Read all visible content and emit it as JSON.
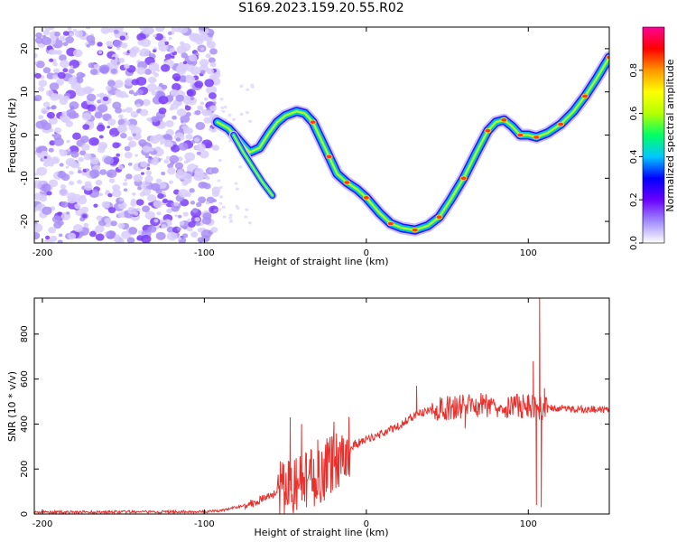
{
  "title": "S169.2023.159.20.55.R02",
  "chart_data": [
    {
      "type": "heatmap",
      "xlabel": "Height of straight line (km)",
      "ylabel": "Frequency (Hz)",
      "xlim": [
        -205,
        150
      ],
      "ylim": [
        -25,
        25
      ],
      "xticks": [
        -200,
        -100,
        0,
        100
      ],
      "yticks": [
        -20,
        -10,
        0,
        10,
        20
      ],
      "colorbar": {
        "label": "Normalized spectral amplitude",
        "range": [
          0,
          1
        ],
        "ticks": [
          "0.0",
          "0.2",
          "0.4",
          "0.6",
          "0.8"
        ],
        "tick_values": [
          0,
          0.2,
          0.4,
          0.6,
          0.8
        ],
        "colors": [
          "#ffffff",
          "#a28cff",
          "#6a00ff",
          "#0000ff",
          "#00c8ff",
          "#00ff64",
          "#b4ff00",
          "#ffff00",
          "#ff9600",
          "#ff0000",
          "#ff0096"
        ]
      },
      "noise_region": {
        "x": [
          -205,
          -92
        ],
        "y": [
          -25,
          25
        ]
      },
      "ridge": [
        {
          "x": -92,
          "y": 3
        },
        {
          "x": -85,
          "y": 1.5
        },
        {
          "x": -78,
          "y": -1.5
        },
        {
          "x": -72,
          "y": -4
        },
        {
          "x": -66,
          "y": -3
        },
        {
          "x": -60,
          "y": 0.5
        },
        {
          "x": -55,
          "y": 3
        },
        {
          "x": -50,
          "y": 4.5
        },
        {
          "x": -43,
          "y": 5.5
        },
        {
          "x": -38,
          "y": 5
        },
        {
          "x": -33,
          "y": 3
        },
        {
          "x": -28,
          "y": -1
        },
        {
          "x": -23,
          "y": -5
        },
        {
          "x": -18,
          "y": -9
        },
        {
          "x": -12,
          "y": -11
        },
        {
          "x": -6,
          "y": -12.5
        },
        {
          "x": 0,
          "y": -14.5
        },
        {
          "x": 8,
          "y": -18
        },
        {
          "x": 15,
          "y": -20.5
        },
        {
          "x": 22,
          "y": -21.5
        },
        {
          "x": 30,
          "y": -22
        },
        {
          "x": 38,
          "y": -21
        },
        {
          "x": 45,
          "y": -19
        },
        {
          "x": 52,
          "y": -15
        },
        {
          "x": 60,
          "y": -10
        },
        {
          "x": 68,
          "y": -4
        },
        {
          "x": 75,
          "y": 1
        },
        {
          "x": 80,
          "y": 3
        },
        {
          "x": 85,
          "y": 3.5
        },
        {
          "x": 90,
          "y": 2
        },
        {
          "x": 95,
          "y": 0
        },
        {
          "x": 100,
          "y": 0
        },
        {
          "x": 105,
          "y": -0.5
        },
        {
          "x": 112,
          "y": 0.5
        },
        {
          "x": 120,
          "y": 2.5
        },
        {
          "x": 128,
          "y": 5.5
        },
        {
          "x": 135,
          "y": 9
        },
        {
          "x": 142,
          "y": 13
        },
        {
          "x": 150,
          "y": 18
        }
      ],
      "branch": [
        {
          "x": -82,
          "y": 0
        },
        {
          "x": -76,
          "y": -4
        },
        {
          "x": -70,
          "y": -7.5
        },
        {
          "x": -64,
          "y": -11
        },
        {
          "x": -58,
          "y": -14
        }
      ]
    },
    {
      "type": "line",
      "xlabel": "Height of straight line (km)",
      "ylabel": "SNR (10 * v/v)",
      "xlim": [
        -205,
        150
      ],
      "ylim": [
        0,
        960
      ],
      "xticks": [
        -200,
        -100,
        0,
        100
      ],
      "yticks": [
        0,
        200,
        400,
        600,
        800
      ],
      "color": "#e8302c",
      "envelope": [
        {
          "x": -205,
          "y": 8
        },
        {
          "x": -100,
          "y": 10
        },
        {
          "x": -90,
          "y": 15
        },
        {
          "x": -80,
          "y": 30
        },
        {
          "x": -70,
          "y": 50
        },
        {
          "x": -60,
          "y": 80
        },
        {
          "x": -50,
          "y": 110
        },
        {
          "x": -40,
          "y": 140
        },
        {
          "x": -30,
          "y": 170
        },
        {
          "x": -20,
          "y": 240
        },
        {
          "x": -10,
          "y": 300
        },
        {
          "x": 0,
          "y": 330
        },
        {
          "x": 10,
          "y": 360
        },
        {
          "x": 20,
          "y": 390
        },
        {
          "x": 30,
          "y": 440
        },
        {
          "x": 40,
          "y": 460
        },
        {
          "x": 50,
          "y": 470
        },
        {
          "x": 60,
          "y": 480
        },
        {
          "x": 70,
          "y": 485
        },
        {
          "x": 80,
          "y": 485
        },
        {
          "x": 90,
          "y": 480
        },
        {
          "x": 100,
          "y": 480
        },
        {
          "x": 110,
          "y": 470
        },
        {
          "x": 120,
          "y": 470
        },
        {
          "x": 130,
          "y": 465
        },
        {
          "x": 140,
          "y": 465
        },
        {
          "x": 150,
          "y": 465
        }
      ],
      "spikes": [
        {
          "x": -47,
          "y": 430
        },
        {
          "x": -43,
          "y": 20
        },
        {
          "x": -40,
          "y": 400
        },
        {
          "x": -37,
          "y": 30
        },
        {
          "x": -30,
          "y": 330
        },
        {
          "x": -26,
          "y": 60
        },
        {
          "x": -20,
          "y": 410
        },
        {
          "x": -17,
          "y": 120
        },
        {
          "x": 31,
          "y": 570
        },
        {
          "x": 61,
          "y": 380
        },
        {
          "x": 103,
          "y": 680
        },
        {
          "x": 105,
          "y": 40
        },
        {
          "x": 107,
          "y": 960
        },
        {
          "x": 108,
          "y": 30
        },
        {
          "x": 110,
          "y": 560
        }
      ]
    }
  ]
}
